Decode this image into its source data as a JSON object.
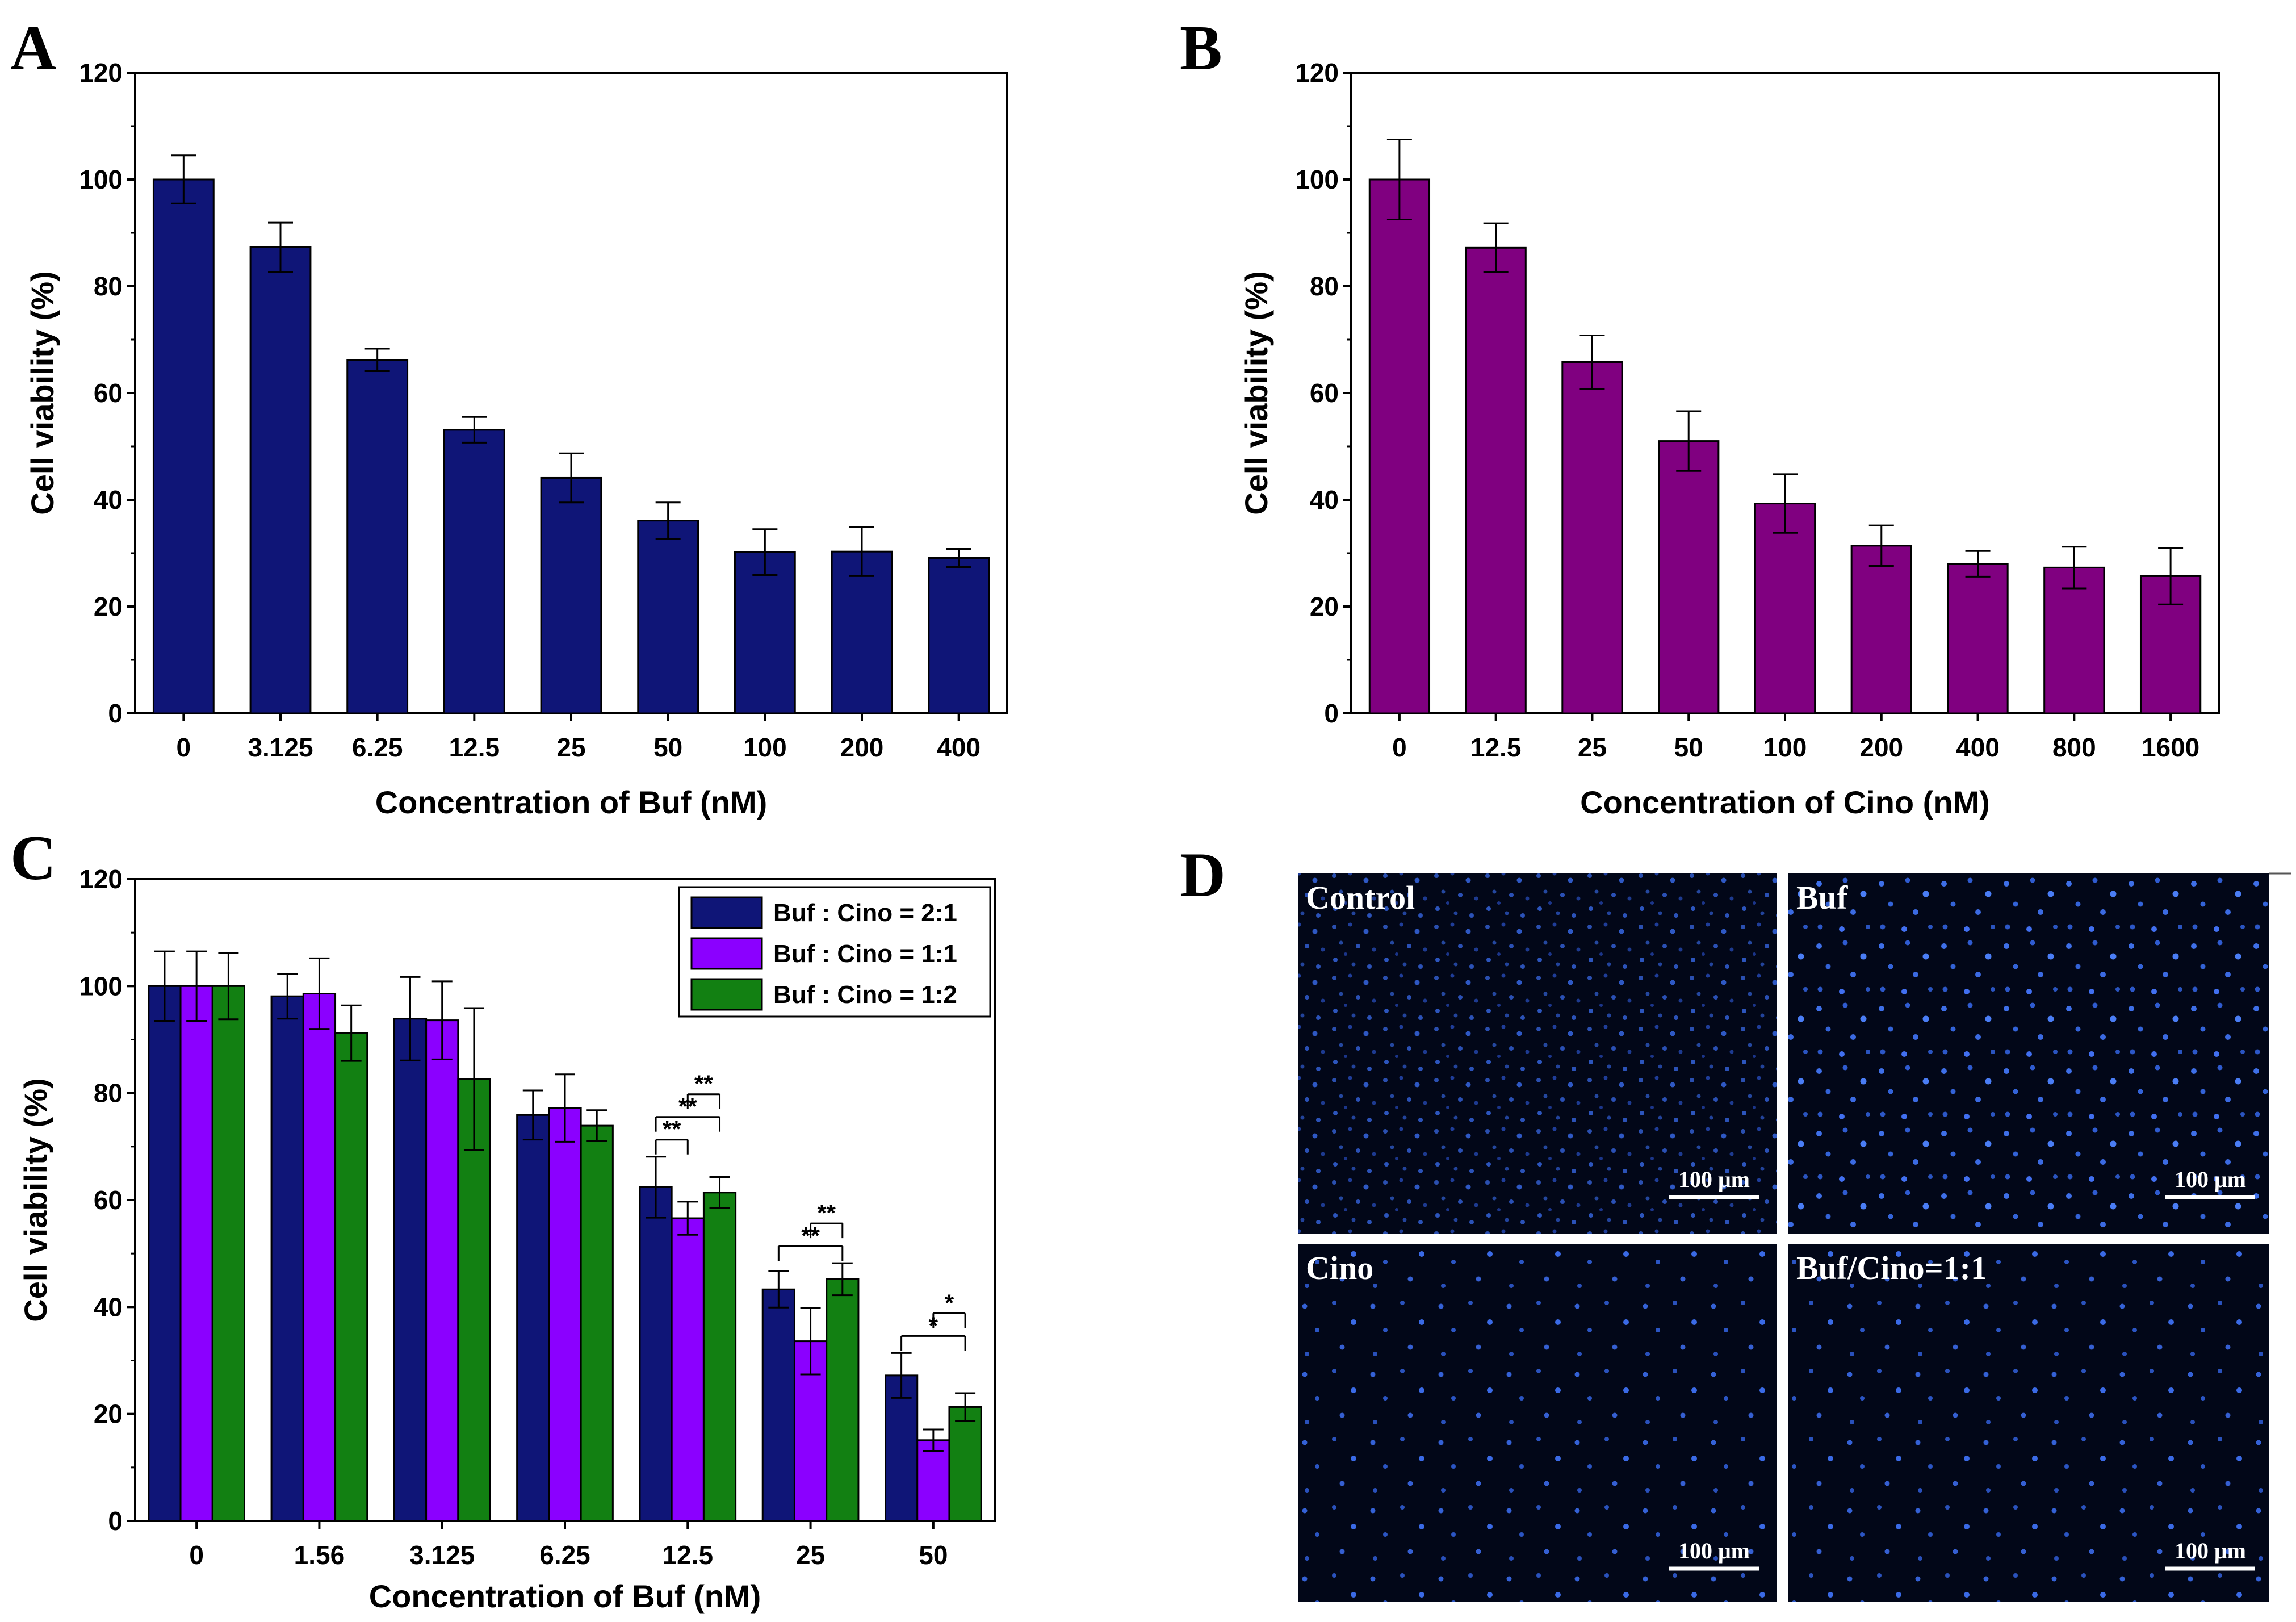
{
  "panels": {
    "A": "A",
    "B": "B",
    "C": "C",
    "D": "D"
  },
  "colors": {
    "A": "#0f1577",
    "B": "#800080",
    "C_series": [
      "#0f1577",
      "#8b00ff",
      "#128012"
    ]
  },
  "chart_data": [
    {
      "id": "A",
      "type": "bar",
      "title": "",
      "xlabel": "Concentration of Buf (nM)",
      "ylabel": "Cell viability (%)",
      "ylim": [
        0,
        120
      ],
      "yticks": [
        0,
        20,
        40,
        60,
        80,
        100,
        120
      ],
      "categories": [
        "0",
        "3.125",
        "6.25",
        "12.5",
        "25",
        "50",
        "100",
        "200",
        "400"
      ],
      "values": [
        100,
        87.3,
        66.2,
        53.1,
        44.1,
        36.1,
        30.2,
        30.3,
        29.1
      ],
      "errors": [
        4.5,
        4.6,
        2.1,
        2.4,
        4.6,
        3.4,
        4.3,
        4.6,
        1.7
      ]
    },
    {
      "id": "B",
      "type": "bar",
      "title": "",
      "xlabel": "Concentration of Cino (nM)",
      "ylabel": "Cell viability (%)",
      "ylim": [
        0,
        120
      ],
      "yticks": [
        0,
        20,
        40,
        60,
        80,
        100,
        120
      ],
      "categories": [
        "0",
        "12.5",
        "25",
        "50",
        "100",
        "200",
        "400",
        "800",
        "1600"
      ],
      "values": [
        100,
        87.2,
        65.8,
        51.0,
        39.3,
        31.4,
        28.0,
        27.3,
        25.7
      ],
      "errors": [
        7.5,
        4.6,
        5.0,
        5.6,
        5.5,
        3.8,
        2.4,
        3.9,
        5.3
      ]
    },
    {
      "id": "C",
      "type": "bar",
      "title": "",
      "xlabel": "Concentration of Buf (nM)",
      "ylabel": "Cell viability (%)",
      "ylim": [
        0,
        120
      ],
      "yticks": [
        0,
        20,
        40,
        60,
        80,
        100,
        120
      ],
      "categories": [
        "0",
        "1.56",
        "3.125",
        "6.25",
        "12.5",
        "25",
        "50"
      ],
      "series": [
        {
          "name": "Buf : Cino = 2:1",
          "values": [
            100,
            98.1,
            93.9,
            75.9,
            62.4,
            43.3,
            27.2
          ],
          "errors": [
            6.5,
            4.2,
            7.8,
            4.6,
            5.7,
            3.4,
            4.2
          ]
        },
        {
          "name": "Buf : Cino = 1:1",
          "values": [
            100,
            98.6,
            93.6,
            77.2,
            56.6,
            33.6,
            15.1
          ],
          "errors": [
            6.5,
            6.6,
            7.3,
            6.3,
            3.1,
            6.2,
            2.0
          ]
        },
        {
          "name": "Buf : Cino = 1:2",
          "values": [
            100,
            91.2,
            82.6,
            73.9,
            61.4,
            45.2,
            21.3
          ],
          "errors": [
            6.2,
            5.2,
            13.3,
            2.9,
            2.9,
            3.0,
            2.6
          ]
        }
      ],
      "legend": "top-right",
      "significance": [
        {
          "category": "12.5",
          "pair": [
            0,
            1
          ],
          "mark": "**"
        },
        {
          "category": "12.5",
          "pair": [
            0,
            2
          ],
          "mark": "**"
        },
        {
          "category": "12.5",
          "pair": [
            1,
            2
          ],
          "mark": "**"
        },
        {
          "category": "25",
          "pair": [
            0,
            2
          ],
          "mark": "**"
        },
        {
          "category": "25",
          "pair": [
            1,
            2
          ],
          "mark": "**"
        },
        {
          "category": "50",
          "pair": [
            0,
            2
          ],
          "mark": "*"
        },
        {
          "category": "50",
          "pair": [
            1,
            2
          ],
          "mark": "*"
        }
      ]
    }
  ],
  "micrographs": [
    {
      "label": "Control",
      "scale": "100 μm"
    },
    {
      "label": "Buf",
      "scale": "100 μm"
    },
    {
      "label": "Cino",
      "scale": "100 μm"
    },
    {
      "label": "Buf/Cino=1:1",
      "scale": "100 μm"
    }
  ]
}
